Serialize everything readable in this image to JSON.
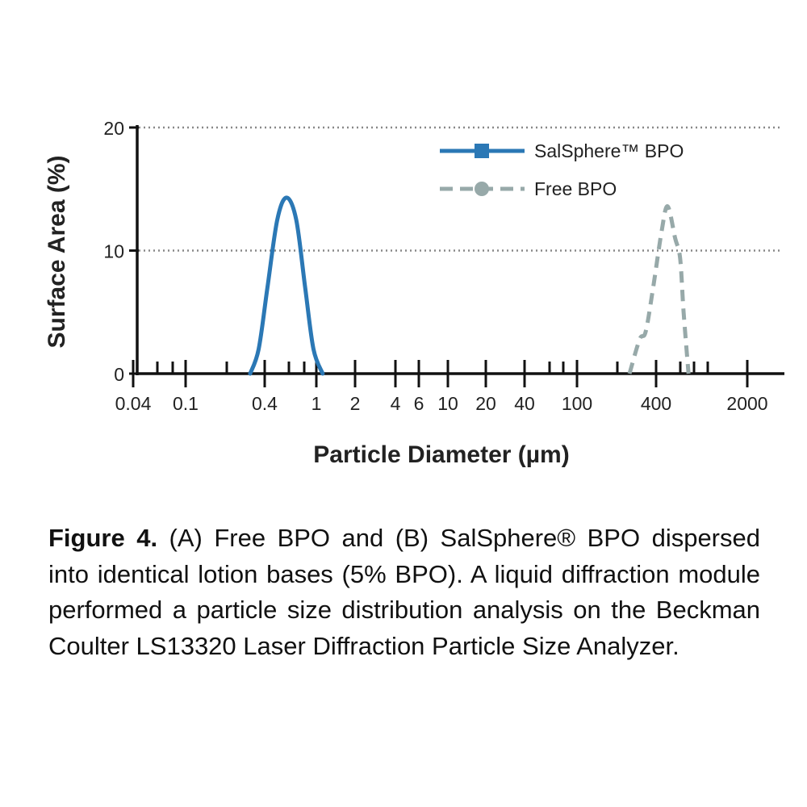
{
  "chart_data": {
    "type": "line",
    "title": "",
    "xlabel": "Particle Diameter (µm)",
    "ylabel": "Surface Area (%)",
    "x_scale": "log",
    "x_tick_labels": [
      "0.04",
      "0.1",
      "0.4",
      "1",
      "2",
      "4",
      "6",
      "10",
      "20",
      "40",
      "100",
      "400",
      "2000"
    ],
    "y_ticks": [
      0,
      10,
      20
    ],
    "ylim": [
      0,
      20
    ],
    "grid": "horizontal dotted",
    "legend": "top-right",
    "series": [
      {
        "name": "SalSphere™ BPO",
        "color": "#2b78b5",
        "style": "solid",
        "marker": "square",
        "x": [
          0.31,
          0.36,
          0.42,
          0.5,
          0.59,
          0.7,
          0.82,
          0.95,
          1.12
        ],
        "y": [
          0,
          2,
          7,
          12.5,
          14.3,
          12.5,
          7,
          2,
          0
        ]
      },
      {
        "name": "Free BPO",
        "color": "#97a9a9",
        "style": "dashed",
        "marker": "circle",
        "x": [
          251,
          300,
          333,
          380,
          440,
          490,
          560,
          611,
          650,
          709
        ],
        "y": [
          0,
          2.8,
          3.4,
          7,
          11.5,
          13.6,
          11,
          9.4,
          5,
          0
        ]
      }
    ]
  },
  "caption": {
    "label": "Figure 4.",
    "text": " (A) Free BPO and (B) SalSphere® BPO dispersed into identical lotion bases (5% BPO).  A liquid diffraction module performed a particle size distribution analysis on the Beckman Coulter LS13320 Laser Diffraction Particle Size Analyzer."
  }
}
